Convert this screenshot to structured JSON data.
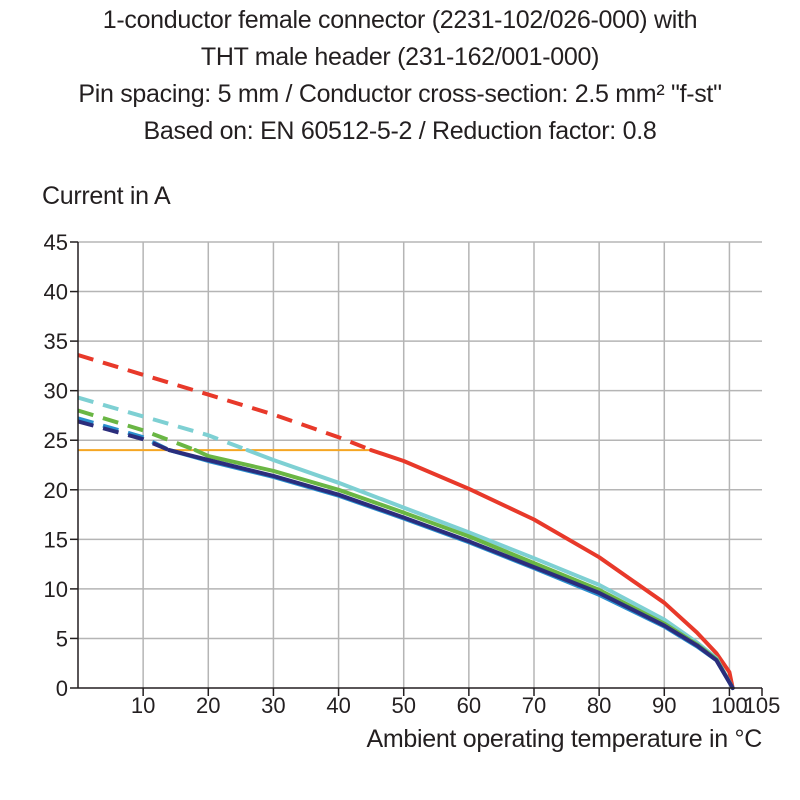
{
  "chart_data": {
    "type": "line",
    "title_lines": [
      "1-conductor female connector (2231-102/026-000) with",
      "THT male header (231-162/001-000)",
      "Pin spacing: 5 mm / Conductor cross-section: 2.5 mm² \"f-st\"",
      "Based on: EN 60512-5-2 / Reduction factor: 0.8"
    ],
    "ylabel": "Current in A",
    "xlabel": "Ambient operating temperature in °C",
    "xlim": [
      0,
      105
    ],
    "ylim": [
      0,
      45
    ],
    "x_ticks": [
      10,
      20,
      30,
      40,
      50,
      60,
      70,
      80,
      90,
      100,
      105
    ],
    "x_tick_labels": [
      "10",
      "20",
      "30",
      "40",
      "50",
      "60",
      "70",
      "80",
      "90",
      "100",
      "105"
    ],
    "y_ticks": [
      0,
      5,
      10,
      15,
      20,
      25,
      30,
      35,
      40,
      45
    ],
    "y_tick_labels": [
      "0",
      "5",
      "10",
      "15",
      "20",
      "25",
      "30",
      "35",
      "40",
      "45"
    ],
    "grid": true,
    "limit_line": {
      "y": 24,
      "x_range": [
        0,
        45
      ],
      "color": "#f5a623"
    },
    "series": [
      {
        "color": "#e8392a",
        "dashed_points": [
          [
            0,
            33.6
          ],
          [
            10,
            31.6
          ],
          [
            20,
            29.6
          ],
          [
            30,
            27.6
          ],
          [
            40,
            25.3
          ],
          [
            45,
            24.0
          ]
        ],
        "solid_points": [
          [
            45,
            24.0
          ],
          [
            50,
            22.9
          ],
          [
            60,
            20.1
          ],
          [
            70,
            17.0
          ],
          [
            80,
            13.2
          ],
          [
            90,
            8.6
          ],
          [
            95,
            5.6
          ],
          [
            98,
            3.5
          ],
          [
            100,
            1.6
          ],
          [
            100.5,
            0
          ]
        ]
      },
      {
        "color": "#7ed0d3",
        "dashed_points": [
          [
            0,
            29.3
          ],
          [
            10,
            27.4
          ],
          [
            20,
            25.5
          ],
          [
            26,
            24.0
          ]
        ],
        "solid_points": [
          [
            26,
            24.0
          ],
          [
            30,
            23.0
          ],
          [
            40,
            20.7
          ],
          [
            50,
            18.2
          ],
          [
            60,
            15.7
          ],
          [
            70,
            13.1
          ],
          [
            80,
            10.4
          ],
          [
            90,
            6.9
          ],
          [
            95,
            4.6
          ],
          [
            98,
            3.0
          ],
          [
            100.5,
            0
          ]
        ]
      },
      {
        "color": "#6ab644",
        "dashed_points": [
          [
            0,
            28.0
          ],
          [
            10,
            26.0
          ],
          [
            18,
            24.0
          ]
        ],
        "solid_points": [
          [
            18,
            24.0
          ],
          [
            20,
            23.4
          ],
          [
            30,
            21.9
          ],
          [
            40,
            20.0
          ],
          [
            50,
            17.7
          ],
          [
            60,
            15.3
          ],
          [
            70,
            12.6
          ],
          [
            80,
            9.9
          ],
          [
            90,
            6.5
          ],
          [
            95,
            4.4
          ],
          [
            98,
            2.9
          ],
          [
            100.5,
            0
          ]
        ]
      },
      {
        "color": "#2a8fce",
        "dashed_points": [
          [
            0,
            27.2
          ],
          [
            10,
            25.3
          ],
          [
            14,
            24.0
          ]
        ],
        "solid_points": [
          [
            14,
            24.0
          ],
          [
            20,
            22.9
          ],
          [
            30,
            21.3
          ],
          [
            40,
            19.4
          ],
          [
            50,
            17.1
          ],
          [
            60,
            14.7
          ],
          [
            70,
            12.1
          ],
          [
            80,
            9.4
          ],
          [
            90,
            6.2
          ],
          [
            95,
            4.2
          ],
          [
            98,
            2.8
          ],
          [
            100.5,
            0
          ]
        ]
      },
      {
        "color": "#2b2d7c",
        "dashed_points": [
          [
            0,
            26.9
          ],
          [
            10,
            25.1
          ],
          [
            14,
            24.0
          ]
        ],
        "solid_points": [
          [
            14,
            24.0
          ],
          [
            20,
            23.0
          ],
          [
            30,
            21.4
          ],
          [
            40,
            19.5
          ],
          [
            50,
            17.2
          ],
          [
            60,
            14.8
          ],
          [
            70,
            12.2
          ],
          [
            80,
            9.6
          ],
          [
            90,
            6.3
          ],
          [
            95,
            4.3
          ],
          [
            98,
            2.8
          ],
          [
            100.5,
            0
          ]
        ]
      }
    ]
  }
}
